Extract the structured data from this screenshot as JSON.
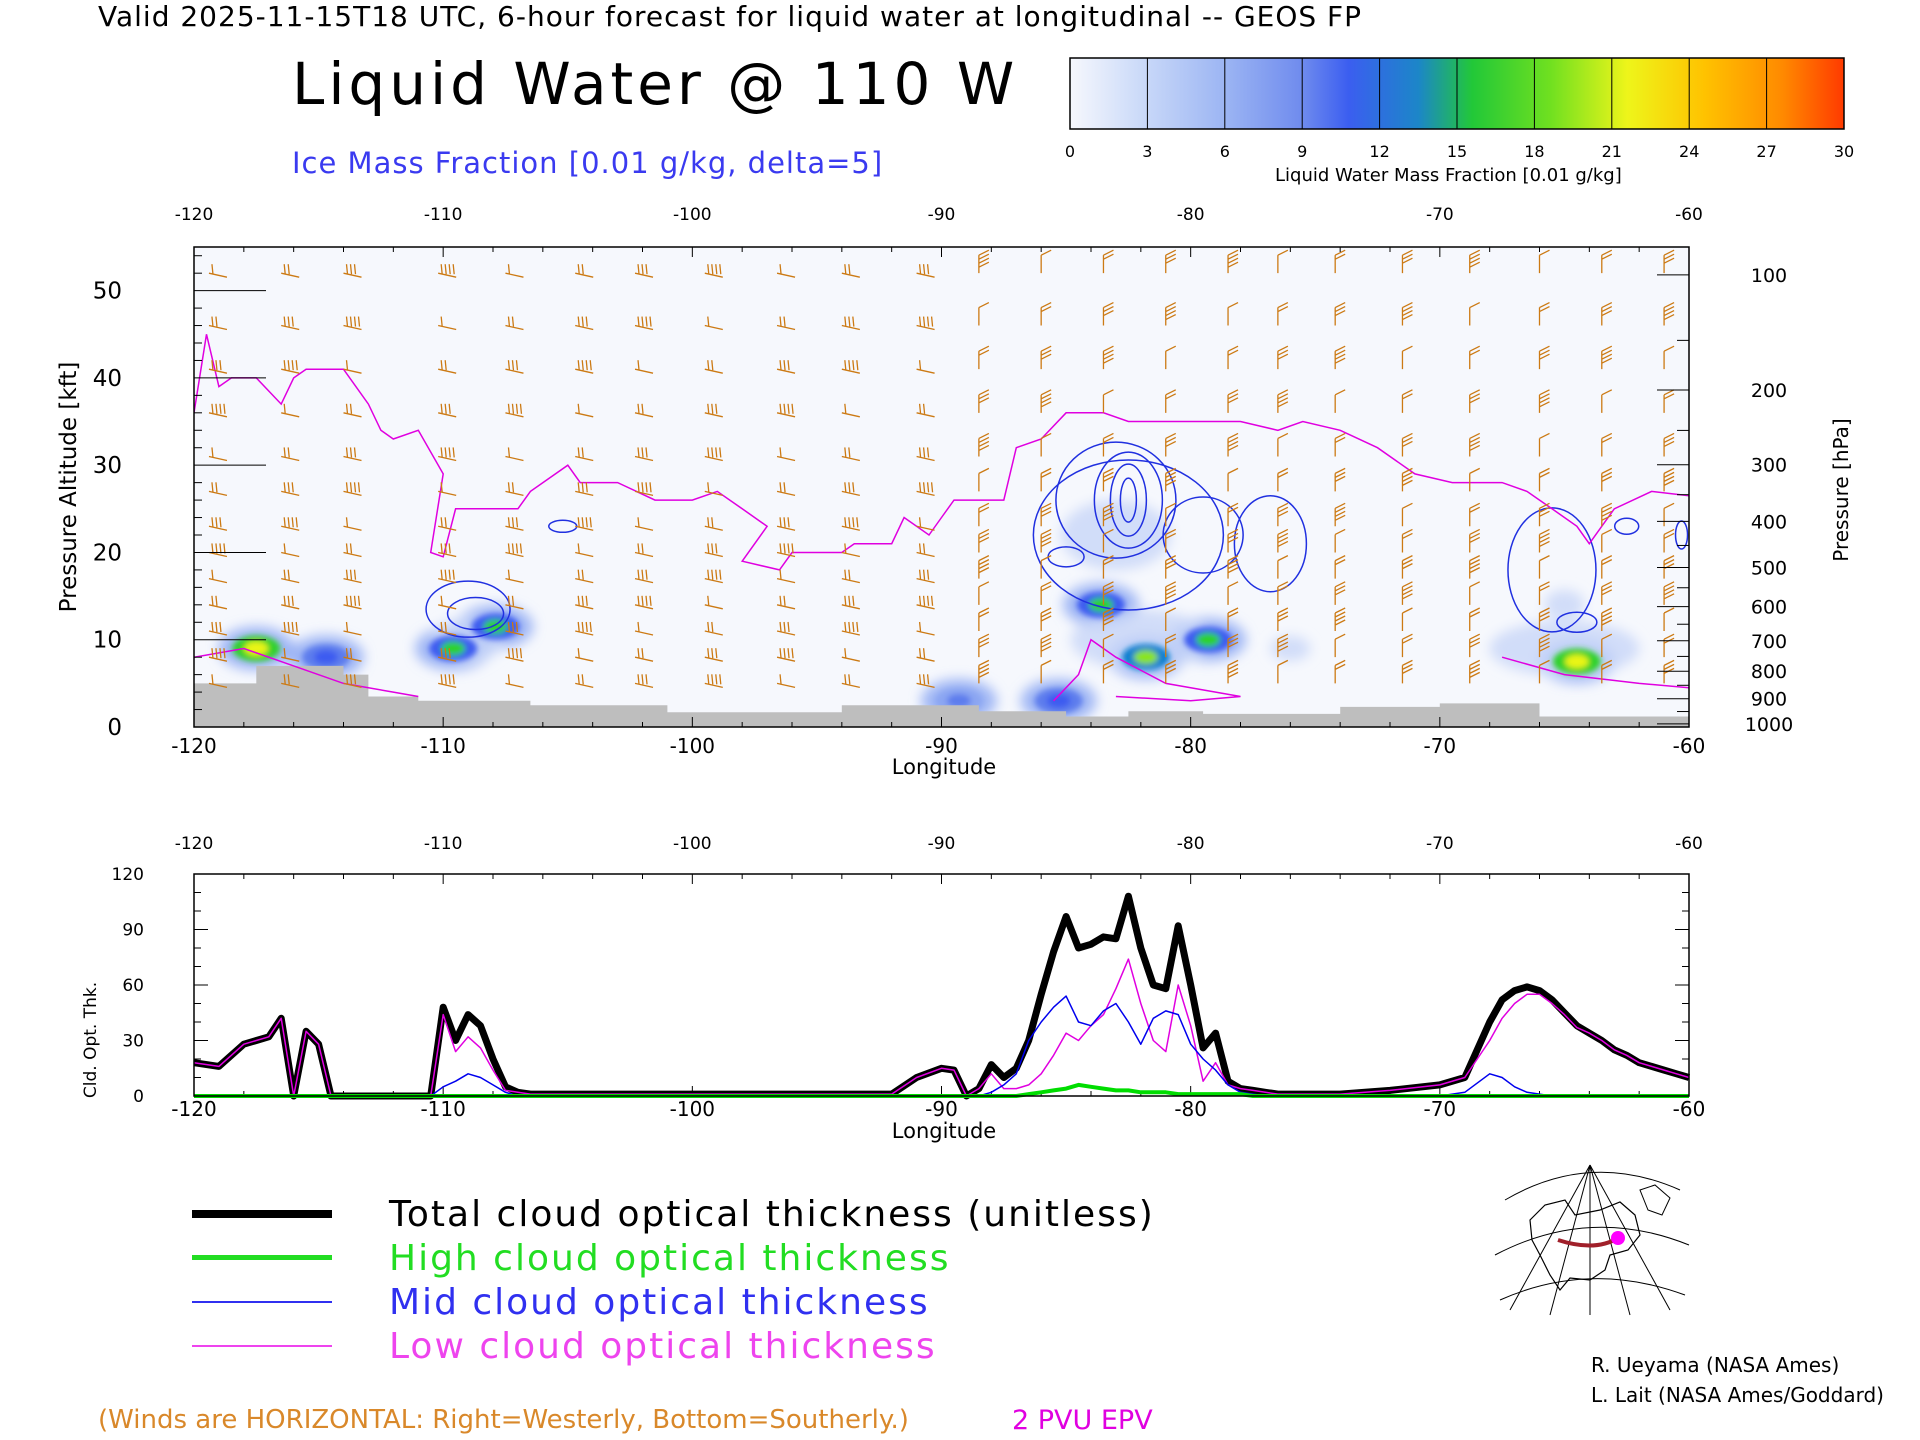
{
  "header": "Valid 2025-11-15T18 UTC, 6-hour forecast for liquid water at longitudinal -- GEOS FP",
  "title": "Liquid Water @ 110 W",
  "subtitle": "Ice Mass Fraction [0.01 g/kg, delta=5]",
  "colorbar": {
    "label": "Liquid Water Mass Fraction [0.01 g/kg]",
    "ticks": [
      "0",
      "3",
      "6",
      "9",
      "12",
      "15",
      "18",
      "21",
      "24",
      "27",
      "30"
    ],
    "colors": [
      "#f4f7fd",
      "#b6caf6",
      "#8ba6f2",
      "#5d7ded",
      "#3d5cf0",
      "#0f7fd0",
      "#2fd12a",
      "#8ae41b",
      "#e9f514",
      "#ffc000",
      "#ff6a00"
    ]
  },
  "top_panel": {
    "xlabel": "Longitude",
    "ylabel_left": "Pressure Altitude [kft]",
    "ylabel_right": "Pressure [hPa]",
    "x_ticks": [
      "-120",
      "-110",
      "-100",
      "-90",
      "-80",
      "-70",
      "-60"
    ],
    "y_ticks_left": [
      "0",
      "10",
      "20",
      "30",
      "40",
      "50"
    ],
    "y_ticks_right": [
      "100",
      "200",
      "300",
      "400",
      "500",
      "600",
      "700",
      "800",
      "900",
      "1000"
    ]
  },
  "bottom_panel": {
    "xlabel": "Longitude",
    "ylabel": "Cld. Opt. Thk.",
    "x_ticks": [
      "-120",
      "-110",
      "-100",
      "-90",
      "-80",
      "-70",
      "-60"
    ],
    "y_ticks": [
      "0",
      "30",
      "60",
      "90",
      "120"
    ]
  },
  "chart_data": [
    {
      "type": "heatmap",
      "title": "Liquid Water @ 110 W",
      "xlabel": "Longitude",
      "ylabel": "Pressure Altitude [kft]",
      "xlim": [
        -120,
        -60
      ],
      "ylim": [
        0,
        55
      ],
      "pressure_axis_hPa": [
        100,
        200,
        300,
        400,
        500,
        600,
        700,
        800,
        900,
        1000
      ],
      "colorbar_range": [
        0,
        30
      ],
      "liquid_water_maxima": [
        {
          "lon": -117.5,
          "alt_kft": 9,
          "value": 25
        },
        {
          "lon": -114.7,
          "alt_kft": 8,
          "value": 12
        },
        {
          "lon": -109.6,
          "alt_kft": 9,
          "value": 17
        },
        {
          "lon": -107.9,
          "alt_kft": 11.5,
          "value": 18
        },
        {
          "lon": -89.3,
          "alt_kft": 3,
          "value": 10
        },
        {
          "lon": -85.3,
          "alt_kft": 3,
          "value": 13
        },
        {
          "lon": -83.6,
          "alt_kft": 14,
          "value": 18
        },
        {
          "lon": -81.8,
          "alt_kft": 8,
          "value": 21
        },
        {
          "lon": -79.3,
          "alt_kft": 10,
          "value": 17
        },
        {
          "lon": -64.5,
          "alt_kft": 7.5,
          "value": 24
        }
      ]
    },
    {
      "type": "line",
      "xlabel": "Longitude",
      "ylabel": "Cld. Opt. Thk.",
      "xlim": [
        -120,
        -60
      ],
      "ylim": [
        0,
        120
      ],
      "x": [
        -120,
        -119,
        -118,
        -117,
        -116.5,
        -116,
        -115.5,
        -115,
        -114.5,
        -114,
        -113,
        -112,
        -111,
        -110.5,
        -110,
        -109.5,
        -109,
        -108.5,
        -108,
        -107.5,
        -107,
        -106.5,
        -106,
        -105,
        -100,
        -95,
        -92,
        -91,
        -90,
        -89.5,
        -89,
        -88.5,
        -88,
        -87.5,
        -87,
        -86.5,
        -86,
        -85.5,
        -85,
        -84.5,
        -84,
        -83.5,
        -83,
        -82.5,
        -82,
        -81.5,
        -81,
        -80.5,
        -80,
        -79.5,
        -79,
        -78.5,
        -78,
        -77.5,
        -77,
        -76.5,
        -76,
        -75,
        -74,
        -72,
        -70,
        -69,
        -68,
        -67.5,
        -67,
        -66.5,
        -66,
        -65.5,
        -65,
        -64.5,
        -64,
        -63.5,
        -63,
        -62.5,
        -62,
        -61.5,
        -61,
        -60.5,
        -60
      ],
      "series": [
        {
          "name": "Total cloud optical thickness (unitless)",
          "color": "#000000",
          "values": [
            18,
            16,
            28,
            32,
            42,
            0,
            35,
            28,
            0,
            0,
            0,
            0,
            0,
            0,
            48,
            30,
            44,
            38,
            20,
            5,
            2,
            1,
            1,
            1,
            1,
            1,
            1,
            10,
            15,
            14,
            0,
            4,
            17,
            10,
            15,
            30,
            55,
            78,
            97,
            80,
            82,
            86,
            85,
            108,
            80,
            60,
            58,
            92,
            60,
            26,
            34,
            8,
            4,
            3,
            2,
            1,
            1,
            1,
            1,
            3,
            6,
            10,
            40,
            52,
            57,
            59,
            57,
            52,
            45,
            38,
            34,
            30,
            25,
            22,
            18,
            16,
            14,
            12,
            10
          ]
        },
        {
          "name": "High cloud optical thickness",
          "color": "#00dd00",
          "values": [
            0,
            0,
            0,
            0,
            0,
            0,
            0,
            0,
            0,
            0,
            0,
            0,
            0,
            0,
            0,
            0,
            0,
            0,
            0,
            0,
            0,
            0,
            0,
            0,
            0,
            0,
            0,
            0,
            0,
            0,
            0,
            0,
            0,
            0,
            0,
            1,
            2,
            3,
            4,
            6,
            5,
            4,
            3,
            3,
            2,
            2,
            2,
            1,
            1,
            1,
            1,
            1,
            1,
            0,
            0,
            0,
            0,
            0,
            0,
            0,
            0,
            0,
            0,
            0,
            0,
            0,
            0,
            0,
            0,
            0,
            0,
            0,
            0,
            0,
            0,
            0,
            0,
            0,
            0
          ]
        },
        {
          "name": "Mid cloud optical thickness",
          "color": "#0000ee",
          "values": [
            0,
            0,
            0,
            0,
            0,
            0,
            0,
            0,
            0,
            0,
            0,
            0,
            0,
            0,
            5,
            8,
            12,
            10,
            6,
            2,
            0,
            0,
            0,
            0,
            0,
            0,
            0,
            0,
            0,
            0,
            0,
            0,
            2,
            6,
            12,
            30,
            40,
            48,
            54,
            40,
            38,
            46,
            50,
            40,
            28,
            42,
            46,
            44,
            28,
            20,
            14,
            6,
            2,
            1,
            0,
            0,
            0,
            0,
            0,
            0,
            0,
            2,
            12,
            10,
            5,
            2,
            1,
            0,
            0,
            0,
            0,
            0,
            0,
            0,
            0,
            0,
            0,
            0,
            0
          ]
        },
        {
          "name": "Low cloud optical thickness",
          "color": "#e000e0",
          "values": [
            18,
            16,
            28,
            32,
            42,
            0,
            35,
            28,
            0,
            0,
            0,
            0,
            0,
            0,
            44,
            24,
            32,
            26,
            14,
            3,
            2,
            1,
            1,
            1,
            1,
            1,
            1,
            10,
            15,
            14,
            0,
            4,
            12,
            4,
            4,
            6,
            12,
            22,
            34,
            30,
            38,
            44,
            58,
            74,
            50,
            30,
            24,
            60,
            38,
            8,
            18,
            6,
            4,
            3,
            2,
            1,
            1,
            1,
            1,
            3,
            6,
            10,
            30,
            42,
            50,
            55,
            55,
            50,
            44,
            37,
            34,
            30,
            25,
            22,
            18,
            16,
            14,
            12,
            10
          ]
        }
      ]
    }
  ],
  "legend": [
    {
      "label": "Total cloud optical thickness (unitless)",
      "color": "#000000"
    },
    {
      "label": "High cloud optical thickness",
      "color": "#22dd22"
    },
    {
      "label": "Mid cloud optical thickness",
      "color": "#3030f0"
    },
    {
      "label": "Low cloud optical thickness",
      "color": "#ee44ee"
    }
  ],
  "credits": [
    "R. Ueyama (NASA Ames)",
    "L. Lait (NASA Ames/Goddard)"
  ],
  "notes": {
    "winds": "(Winds are HORIZONTAL: Right=Westerly, Bottom=Southerly.)",
    "pvu": "2 PVU EPV"
  },
  "colors": {
    "wind_barb": "#cc7a14",
    "terrain": "#bdbdbd",
    "ice_contour": "#2030e0",
    "pv_contour": "#e000e0"
  }
}
